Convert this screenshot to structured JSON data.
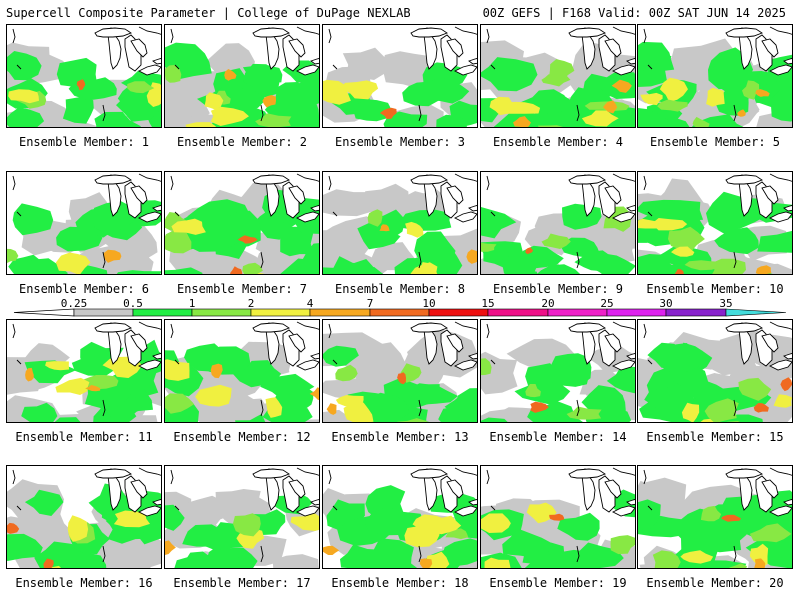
{
  "header": {
    "left": "Supercell Composite Parameter | College of DuPage NEXLAB",
    "right": "00Z GEFS | F168 Valid: 00Z SAT JUN 14 2025"
  },
  "members": [
    {
      "label": "Ensemble Member: 1",
      "coverage": 0.45
    },
    {
      "label": "Ensemble Member: 2",
      "coverage": 0.7
    },
    {
      "label": "Ensemble Member: 3",
      "coverage": 0.2
    },
    {
      "label": "Ensemble Member: 4",
      "coverage": 0.85
    },
    {
      "label": "Ensemble Member: 5",
      "coverage": 0.8
    },
    {
      "label": "Ensemble Member: 6",
      "coverage": 0.4
    },
    {
      "label": "Ensemble Member: 7",
      "coverage": 0.6
    },
    {
      "label": "Ensemble Member: 8",
      "coverage": 0.55
    },
    {
      "label": "Ensemble Member: 9",
      "coverage": 0.35
    },
    {
      "label": "Ensemble Member: 10",
      "coverage": 0.7
    },
    {
      "label": "Ensemble Member: 11",
      "coverage": 0.5
    },
    {
      "label": "Ensemble Member: 12",
      "coverage": 0.55
    },
    {
      "label": "Ensemble Member: 13",
      "coverage": 0.6
    },
    {
      "label": "Ensemble Member: 14",
      "coverage": 0.4
    },
    {
      "label": "Ensemble Member: 15",
      "coverage": 0.75
    },
    {
      "label": "Ensemble Member: 16",
      "coverage": 0.55
    },
    {
      "label": "Ensemble Member: 17",
      "coverage": 0.35
    },
    {
      "label": "Ensemble Member: 18",
      "coverage": 0.6
    },
    {
      "label": "Ensemble Member: 19",
      "coverage": 0.45
    },
    {
      "label": "Ensemble Member: 20",
      "coverage": 0.8
    }
  ],
  "legend": {
    "ticks": [
      "0.25",
      "0.5",
      "1",
      "2",
      "4",
      "7",
      "10",
      "15",
      "20",
      "25",
      "30",
      "35"
    ],
    "colors": [
      "#c8c8c8",
      "#22ee44",
      "#88e844",
      "#f0f040",
      "#f6a820",
      "#f06a20",
      "#ee1010",
      "#ee1088",
      "#ee20c8",
      "#dd22ee",
      "#8822cc",
      "#aa77dd",
      "#44dddd"
    ]
  }
}
